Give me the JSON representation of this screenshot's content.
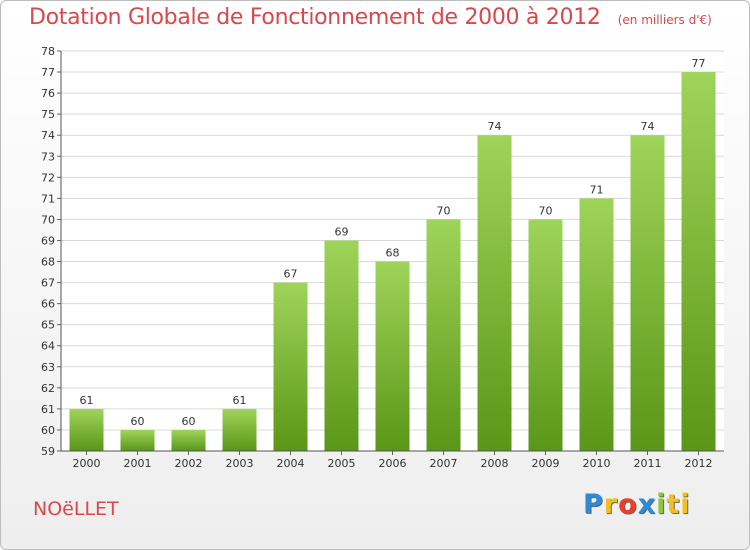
{
  "header": {
    "title": "Dotation Globale de Fonctionnement de 2000 à 2012",
    "subtitle": "(en milliers d'€)"
  },
  "commune": "NOëLLET",
  "logo": {
    "letters": [
      "P",
      "r",
      "o",
      "x",
      "i",
      "ti"
    ]
  },
  "colors": {
    "title": "#d8484c",
    "bar_top": "#9fd45a",
    "bar_bottom": "#5a9618",
    "grid": "#d9d9d9"
  },
  "chart_data": {
    "type": "bar",
    "categories": [
      "2000",
      "2001",
      "2002",
      "2003",
      "2004",
      "2005",
      "2006",
      "2007",
      "2008",
      "2009",
      "2010",
      "2011",
      "2012"
    ],
    "values": [
      61,
      60,
      60,
      61,
      67,
      69,
      68,
      70,
      74,
      70,
      71,
      74,
      77
    ],
    "ylim": [
      59,
      78
    ],
    "yticks": [
      59,
      60,
      61,
      62,
      63,
      64,
      65,
      66,
      67,
      68,
      69,
      70,
      71,
      72,
      73,
      74,
      75,
      76,
      77,
      78
    ],
    "grid": true,
    "data_labels": true
  }
}
